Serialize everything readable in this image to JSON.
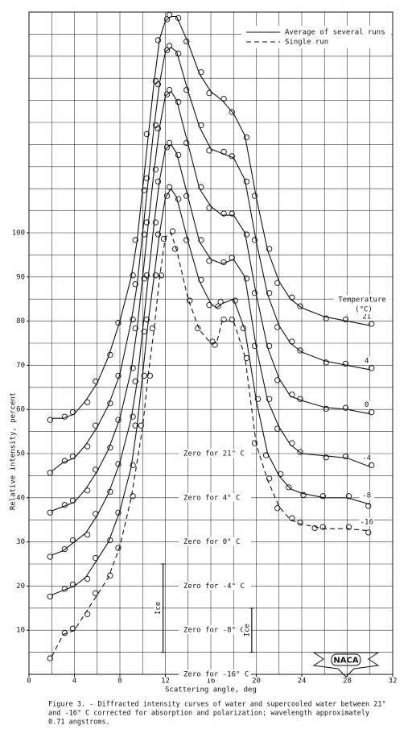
{
  "chart_data": {
    "type": "line",
    "xlabel": "Scattering angle, deg",
    "ylabel": "Relative intensity, percent",
    "xlim": [
      0,
      32
    ],
    "ylim": [
      0,
      150
    ],
    "xticks": [
      0,
      4,
      8,
      12,
      16,
      20,
      24,
      28,
      32
    ],
    "yticks": [
      10,
      20,
      30,
      40,
      50,
      60,
      70,
      80,
      90,
      100
    ],
    "grid": true,
    "xgrid_step": 2,
    "ygrid_step": 5,
    "legend": [
      {
        "label": "Average of several runs",
        "dash": false
      },
      {
        "label": "Single run",
        "dash": true
      }
    ],
    "legend_title": [
      "Temperature",
      "(°C)"
    ],
    "series": [
      {
        "name": "21",
        "color": "#111",
        "dash": false,
        "x": [
          2,
          3,
          4,
          5,
          6,
          7,
          8,
          9,
          9.5,
          10,
          10.5,
          11,
          11.5,
          12,
          12.5,
          13,
          14,
          15,
          16,
          17,
          18,
          19,
          20,
          21,
          22,
          23,
          24,
          26,
          28,
          30
        ],
        "values": [
          58,
          58,
          59,
          62,
          66,
          72,
          80,
          90,
          98,
          110,
          122,
          134,
          144,
          148,
          149,
          149,
          143,
          136,
          132,
          130,
          127,
          122,
          108,
          96,
          89,
          85,
          83,
          81,
          80,
          79
        ]
      },
      {
        "name": "4",
        "color": "#111",
        "dash": false,
        "x": [
          2,
          3,
          4,
          5,
          6,
          7,
          8,
          9,
          9.5,
          10,
          10.5,
          11,
          11.5,
          12,
          12.5,
          13,
          14,
          15,
          16,
          17,
          18,
          19,
          20,
          21,
          22,
          23,
          24,
          26,
          28,
          30
        ],
        "values": [
          46,
          48,
          49,
          52,
          56,
          61,
          68,
          80,
          88,
          100,
          112,
          124,
          134,
          141,
          142,
          141,
          132,
          124,
          119,
          118,
          117,
          112,
          98,
          86,
          79,
          75,
          73,
          71,
          70,
          69
        ]
      },
      {
        "name": "0",
        "color": "#111",
        "dash": false,
        "x": [
          2,
          3,
          4,
          5,
          6,
          7,
          8,
          9,
          9.5,
          10,
          10.5,
          11,
          11.5,
          12,
          12.5,
          13,
          14,
          15,
          16,
          17,
          18,
          19,
          20,
          21,
          22,
          23,
          24,
          26,
          28,
          30
        ],
        "values": [
          37,
          38,
          39,
          42,
          46,
          51,
          58,
          69,
          78,
          90,
          102,
          114,
          124,
          131,
          132,
          130,
          120,
          110,
          106,
          104,
          104,
          100,
          86,
          74,
          67,
          63,
          62,
          60.5,
          60,
          59
        ]
      },
      {
        "name": "-4",
        "color": "#111",
        "dash": false,
        "x": [
          2,
          3,
          4,
          5,
          6,
          7,
          8,
          9,
          9.5,
          10,
          10.5,
          11,
          11.5,
          12,
          12.5,
          13,
          14,
          15,
          16,
          17,
          18,
          19,
          20,
          21,
          22,
          23,
          24,
          26,
          28,
          30
        ],
        "values": [
          27,
          28,
          30,
          32,
          36,
          41,
          48,
          58,
          66,
          78,
          90,
          102,
          112,
          119,
          120,
          118,
          108,
          98,
          94,
          93,
          94,
          90,
          74,
          62,
          56,
          52,
          50,
          49.5,
          49,
          47
        ]
      },
      {
        "name": "-8",
        "color": "#111",
        "dash": false,
        "x": [
          2,
          3,
          4,
          5,
          6,
          7,
          8,
          9,
          9.5,
          10,
          10.5,
          11,
          11.5,
          12,
          12.5,
          13,
          14,
          15,
          16,
          16.5,
          17,
          18,
          19,
          20,
          21,
          22,
          23,
          24,
          26,
          28,
          30
        ],
        "values": [
          18,
          19,
          20,
          22,
          26,
          30,
          37,
          47,
          56,
          68,
          80,
          90,
          100,
          108,
          110,
          108,
          98,
          89,
          84,
          83,
          84,
          85,
          78,
          62,
          50,
          45,
          42,
          41,
          40,
          40,
          38.5
        ]
      },
      {
        "name": "-16",
        "color": "#111",
        "dash": true,
        "x": [
          2,
          3,
          4,
          5,
          6,
          7,
          8,
          9,
          10,
          10.5,
          11,
          11.5,
          12,
          12.5,
          13,
          14,
          15,
          16,
          16.5,
          17,
          18,
          19,
          20,
          21,
          22,
          23,
          24,
          25,
          26,
          28,
          30
        ],
        "values": [
          4,
          9,
          10,
          14,
          18,
          22,
          29,
          40,
          56,
          68,
          78,
          90,
          99,
          100,
          96,
          85,
          78,
          75,
          75,
          80,
          80,
          72,
          52,
          44,
          38,
          35,
          34,
          33.5,
          33,
          33,
          32.5
        ]
      }
    ],
    "zero_labels": [
      {
        "text": "Zero for 21° C",
        "value": 50
      },
      {
        "text": "Zero for 4° C",
        "value": 40
      },
      {
        "text": "Zero for 0° C",
        "value": 30
      },
      {
        "text": "Zero for -4° C",
        "value": 20
      },
      {
        "text": "Zero for -8° C",
        "value": 10
      },
      {
        "text": "Zero for -16° C",
        "value": 0
      }
    ],
    "ice_marks": [
      {
        "label": "Ice",
        "x": 11.8,
        "y": [
          5,
          25
        ]
      },
      {
        "label": "Ice",
        "x": 19.6,
        "y": [
          5,
          15
        ]
      }
    ],
    "logo": "NACA",
    "caption": [
      "Figure 3. - Diffracted intensity curves of water and supercooled water between 21°",
      "and -16° C corrected for absorption and polarization; wavelength approximately",
      "0.71 angstroms."
    ]
  }
}
